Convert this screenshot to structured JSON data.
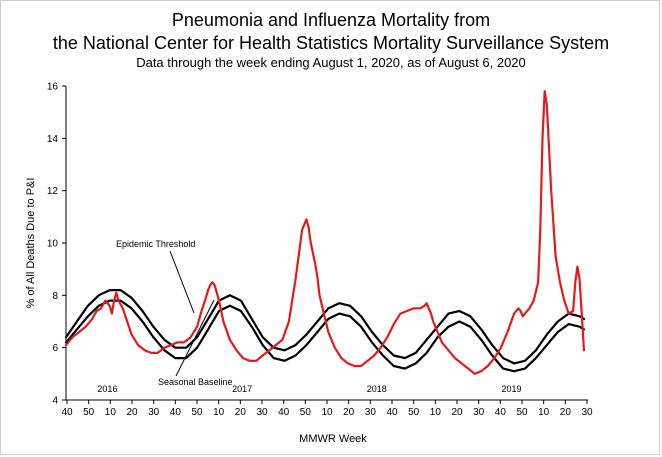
{
  "chart_data": {
    "type": "line",
    "title": "Pneumonia and Influenza Mortality from",
    "title_line2": "the National Center for Health Statistics Mortality Surveillance System",
    "subtitle": "Data through the week ending August  1, 2020, as of August 6, 2020",
    "xlabel": "MMWR Week",
    "ylabel": "% of All Deaths Due to P&I",
    "ylim": [
      4,
      16
    ],
    "y_ticks": [
      4,
      6,
      8,
      10,
      12,
      14,
      16
    ],
    "x_tick_labels": [
      "40",
      "50",
      "10",
      "20",
      "30",
      "40",
      "50",
      "10",
      "20",
      "30",
      "40",
      "50",
      "10",
      "20",
      "30",
      "40",
      "50",
      "10",
      "20",
      "30",
      "40",
      "50",
      "10",
      "20",
      "30"
    ],
    "season_labels": [
      "2016",
      "2017",
      "2018",
      "2019"
    ],
    "annotations": [
      "Epidemic Threshold",
      "Seasonal Baseline"
    ],
    "week_range": [
      "2015-W40",
      "2020-W31"
    ],
    "series": [
      {
        "name": "P&I",
        "color": "#e31a1c",
        "x_weeks": [
          0,
          3,
          6,
          9,
          12,
          14,
          16,
          18,
          20,
          21,
          22,
          23,
          24,
          26,
          28,
          30,
          33,
          36,
          39,
          42,
          45,
          48,
          51,
          54,
          57,
          60,
          62,
          64,
          65,
          66,
          67,
          68,
          70,
          72,
          75,
          78,
          81,
          84,
          87,
          90,
          93,
          96,
          99,
          102,
          105,
          108,
          110,
          111,
          112,
          113,
          114,
          115,
          116,
          118,
          120,
          123,
          126,
          129,
          132,
          135,
          138,
          141,
          144,
          147,
          150,
          153,
          156,
          159,
          162,
          164,
          165,
          166,
          167,
          168,
          170,
          172,
          175,
          178,
          181,
          184,
          187,
          190,
          193,
          196,
          199,
          202,
          205,
          207,
          208,
          209,
          210,
          212,
          214,
          216,
          217,
          218,
          219,
          220,
          222,
          224,
          226,
          228,
          230,
          232,
          233,
          234,
          235,
          237
        ],
        "y": [
          6.1,
          6.4,
          6.6,
          6.8,
          7.1,
          7.4,
          7.5,
          7.8,
          7.6,
          7.3,
          7.8,
          8.1,
          7.8,
          7.5,
          7.0,
          6.5,
          6.1,
          5.9,
          5.8,
          5.8,
          6.0,
          6.1,
          6.2,
          6.2,
          6.4,
          6.8,
          7.4,
          7.9,
          8.2,
          8.4,
          8.5,
          8.4,
          7.8,
          7.0,
          6.3,
          5.9,
          5.6,
          5.5,
          5.5,
          5.7,
          5.9,
          6.1,
          6.3,
          7.0,
          8.6,
          10.5,
          10.9,
          10.6,
          10.0,
          9.6,
          9.2,
          8.7,
          8.0,
          7.3,
          6.6,
          6.0,
          5.6,
          5.4,
          5.3,
          5.3,
          5.5,
          5.7,
          6.0,
          6.4,
          6.9,
          7.3,
          7.4,
          7.5,
          7.5,
          7.6,
          7.7,
          7.5,
          7.3,
          7.0,
          6.6,
          6.2,
          5.9,
          5.6,
          5.4,
          5.2,
          5.0,
          5.1,
          5.3,
          5.6,
          6.0,
          6.6,
          7.3,
          7.5,
          7.4,
          7.2,
          7.3,
          7.5,
          7.8,
          8.5,
          10.5,
          14.0,
          15.8,
          15.3,
          12.0,
          9.5,
          8.5,
          7.8,
          7.3,
          7.4,
          8.5,
          9.1,
          8.6,
          5.9
        ]
      },
      {
        "name": "Epidemic Threshold",
        "color": "#000000",
        "x_weeks": [
          0,
          5,
          10,
          15,
          20,
          25,
          30,
          35,
          40,
          45,
          50,
          55,
          60,
          65,
          70,
          75,
          80,
          85,
          90,
          95,
          100,
          105,
          110,
          115,
          120,
          125,
          130,
          135,
          140,
          145,
          150,
          155,
          160,
          165,
          170,
          175,
          180,
          185,
          190,
          195,
          200,
          205,
          210,
          215,
          220,
          225,
          230,
          235,
          237
        ],
        "y": [
          6.4,
          7.0,
          7.6,
          8.0,
          8.2,
          8.2,
          7.9,
          7.4,
          6.8,
          6.3,
          6.0,
          6.0,
          6.4,
          7.1,
          7.8,
          8.0,
          7.8,
          7.1,
          6.4,
          6.0,
          5.9,
          6.1,
          6.5,
          7.0,
          7.5,
          7.7,
          7.6,
          7.2,
          6.6,
          6.1,
          5.7,
          5.6,
          5.8,
          6.3,
          6.8,
          7.3,
          7.4,
          7.2,
          6.7,
          6.1,
          5.6,
          5.4,
          5.5,
          5.9,
          6.5,
          7.0,
          7.3,
          7.2,
          7.1
        ]
      },
      {
        "name": "Seasonal Baseline",
        "color": "#000000",
        "x_weeks": [
          0,
          5,
          10,
          15,
          20,
          25,
          30,
          35,
          40,
          45,
          50,
          55,
          60,
          65,
          70,
          75,
          80,
          85,
          90,
          95,
          100,
          105,
          110,
          115,
          120,
          125,
          130,
          135,
          140,
          145,
          150,
          155,
          160,
          165,
          170,
          175,
          180,
          185,
          190,
          195,
          200,
          205,
          210,
          215,
          220,
          225,
          230,
          235,
          237
        ],
        "y": [
          6.2,
          6.7,
          7.2,
          7.6,
          7.8,
          7.8,
          7.5,
          7.0,
          6.4,
          5.9,
          5.6,
          5.6,
          6.0,
          6.7,
          7.4,
          7.6,
          7.4,
          6.8,
          6.1,
          5.6,
          5.5,
          5.7,
          6.1,
          6.6,
          7.1,
          7.3,
          7.2,
          6.8,
          6.2,
          5.7,
          5.3,
          5.2,
          5.4,
          5.8,
          6.4,
          6.8,
          7.0,
          6.8,
          6.3,
          5.7,
          5.2,
          5.1,
          5.2,
          5.6,
          6.1,
          6.6,
          6.9,
          6.8,
          6.7
        ]
      }
    ],
    "grid": false,
    "legend": "none"
  }
}
